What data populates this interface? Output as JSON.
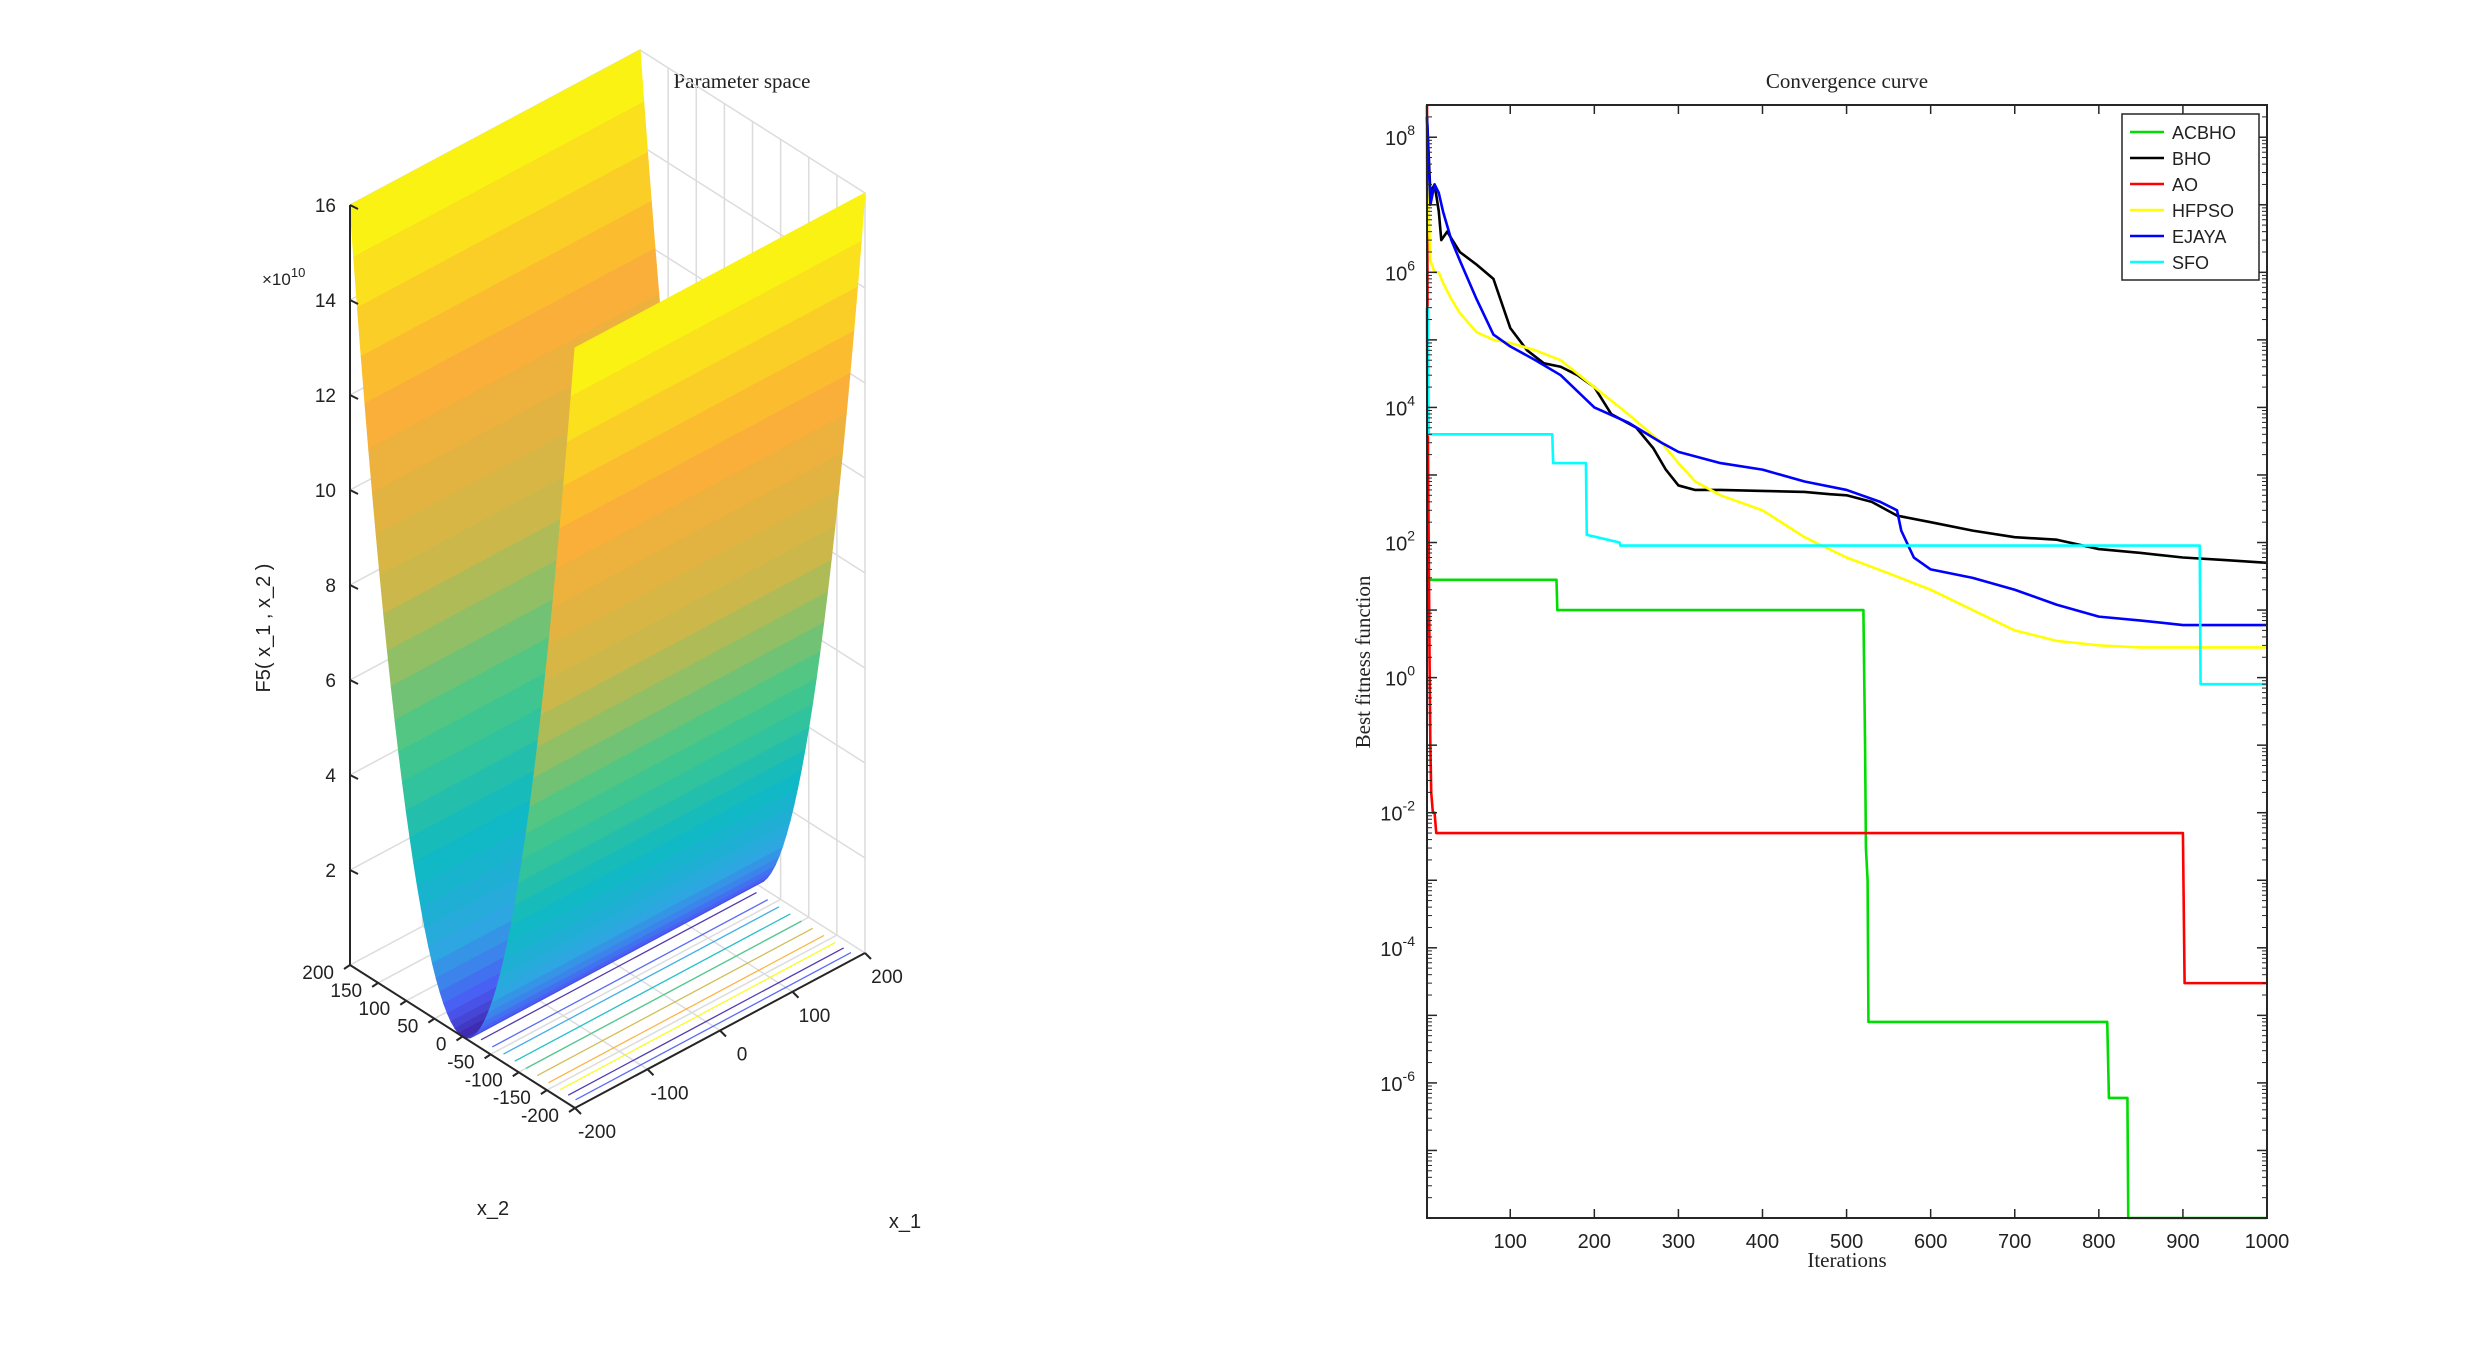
{
  "chart_data": [
    {
      "type": "surface",
      "title": "Parameter space",
      "xlabel": "x_1",
      "ylabel": "x_2",
      "zlabel": "F5( x_1 , x_2 )",
      "x_ticks": [
        "-200",
        "-100",
        "0",
        "100",
        "200"
      ],
      "y_ticks": [
        "-200",
        "-150",
        "-100",
        "-50",
        "0",
        "50",
        "100",
        "150",
        "200"
      ],
      "z_ticks": [
        "2",
        "4",
        "6",
        "8",
        "10",
        "12",
        "14",
        "16"
      ],
      "z_multiplier": "×10",
      "z_multiplier_exp": "10",
      "xlim": [
        -200,
        200
      ],
      "ylim": [
        -200,
        200
      ],
      "zlim": [
        0,
        160000000000
      ],
      "z_peak": 160000000000,
      "colormap": [
        "#3e26a8",
        "#4a5cf5",
        "#2ea7e1",
        "#0eb9c3",
        "#47c787",
        "#cbb84a",
        "#fbae38",
        "#f9fb0e"
      ],
      "grid": true
    },
    {
      "type": "line",
      "title": "Convergence curve",
      "xlabel": "Iterations",
      "ylabel": "Best fitness function",
      "yscale": "log",
      "xlim": [
        1,
        1000
      ],
      "ylim": [
        1e-08,
        300000000.0
      ],
      "x_ticks": [
        "100",
        "200",
        "300",
        "400",
        "500",
        "600",
        "700",
        "800",
        "900",
        "1000"
      ],
      "y_ticks": [
        {
          "base": "10",
          "exp": "8"
        },
        {
          "base": "10",
          "exp": "6"
        },
        {
          "base": "10",
          "exp": "4"
        },
        {
          "base": "10",
          "exp": "2"
        },
        {
          "base": "10",
          "exp": "0"
        },
        {
          "base": "10",
          "exp": "-2"
        },
        {
          "base": "10",
          "exp": "-4"
        },
        {
          "base": "10",
          "exp": "-6"
        }
      ],
      "legend_position": "top-right",
      "series": [
        {
          "name": "ACBHO",
          "color": "#00dd00",
          "x": [
            1,
            2,
            3,
            4,
            5,
            6,
            155,
            156,
            245,
            246,
            520,
            522,
            523,
            525,
            526,
            810,
            812,
            822,
            823,
            834,
            835,
            1000
          ],
          "y": [
            300000,
            25,
            28,
            28,
            28,
            28,
            28,
            10,
            10,
            10,
            10,
            0.1,
            0.003,
            0.001,
            8e-06,
            8e-06,
            6e-07,
            6e-07,
            6e-07,
            6e-07,
            1e-08,
            1e-08
          ]
        },
        {
          "name": "BHO",
          "color": "#000000",
          "x": [
            1,
            5,
            10,
            15,
            18,
            25,
            40,
            60,
            80,
            100,
            120,
            140,
            160,
            180,
            200,
            220,
            250,
            270,
            285,
            300,
            320,
            350,
            400,
            450,
            480,
            500,
            530,
            560,
            600,
            650,
            700,
            750,
            800,
            850,
            900,
            950,
            1000
          ],
          "y": [
            200000000,
            15000000,
            20000000,
            8000000,
            3000000,
            4000000,
            2000000,
            1300000,
            800000,
            150000,
            70000,
            45000,
            40000,
            30000,
            20000,
            8000,
            5000,
            2500,
            1200,
            700,
            600,
            600,
            580,
            560,
            520,
            500,
            400,
            250,
            200,
            150,
            120,
            110,
            80,
            70,
            60,
            55,
            50
          ]
        },
        {
          "name": "AO",
          "color": "#ff0000",
          "x": [
            1,
            2,
            3,
            4,
            5,
            6,
            8,
            10,
            12,
            15,
            900,
            902,
            1000
          ],
          "y": [
            300000000,
            5000,
            100,
            2,
            0.1,
            0.02,
            0.01,
            0.01,
            0.005,
            0.005,
            0.005,
            3e-05,
            3e-05
          ]
        },
        {
          "name": "HFPSO",
          "color": "#ffff00",
          "x": [
            1,
            5,
            10,
            15,
            20,
            30,
            40,
            60,
            80,
            100,
            130,
            160,
            200,
            240,
            280,
            300,
            320,
            350,
            400,
            450,
            500,
            550,
            600,
            650,
            700,
            750,
            800,
            850,
            900,
            950,
            1000
          ],
          "y": [
            40000000,
            1500000,
            1000000,
            1000000,
            700000,
            400000,
            250000,
            130000,
            100000,
            90000,
            70000,
            50000,
            20000,
            8000,
            3000,
            1500,
            800,
            500,
            300,
            120,
            60,
            35,
            20,
            10,
            5,
            3.5,
            3,
            2.8,
            2.8,
            2.8,
            2.8
          ]
        },
        {
          "name": "EJAYA",
          "color": "#0000ff",
          "x": [
            1,
            5,
            10,
            15,
            20,
            30,
            40,
            60,
            80,
            100,
            130,
            160,
            200,
            240,
            280,
            300,
            350,
            400,
            450,
            500,
            540,
            560,
            565,
            580,
            600,
            650,
            700,
            750,
            800,
            850,
            900,
            950,
            1000
          ],
          "y": [
            200000000,
            10000000,
            20000000,
            15000000,
            8000000,
            3000000,
            1500000,
            400000,
            120000,
            80000,
            50000,
            30000,
            10000,
            6000,
            3000,
            2200,
            1500,
            1200,
            800,
            600,
            400,
            300,
            150,
            60,
            40,
            30,
            20,
            12,
            8,
            7,
            6,
            6,
            6
          ]
        },
        {
          "name": "SFO",
          "color": "#00ffff",
          "x": [
            1,
            2,
            3,
            4,
            150,
            151,
            190,
            191,
            230,
            231,
            920,
            921,
            1000
          ],
          "y": [
            300000,
            300000,
            4000,
            4000,
            4000,
            1500,
            1500,
            130,
            100,
            90,
            90,
            0.8,
            0.8
          ]
        }
      ]
    }
  ]
}
